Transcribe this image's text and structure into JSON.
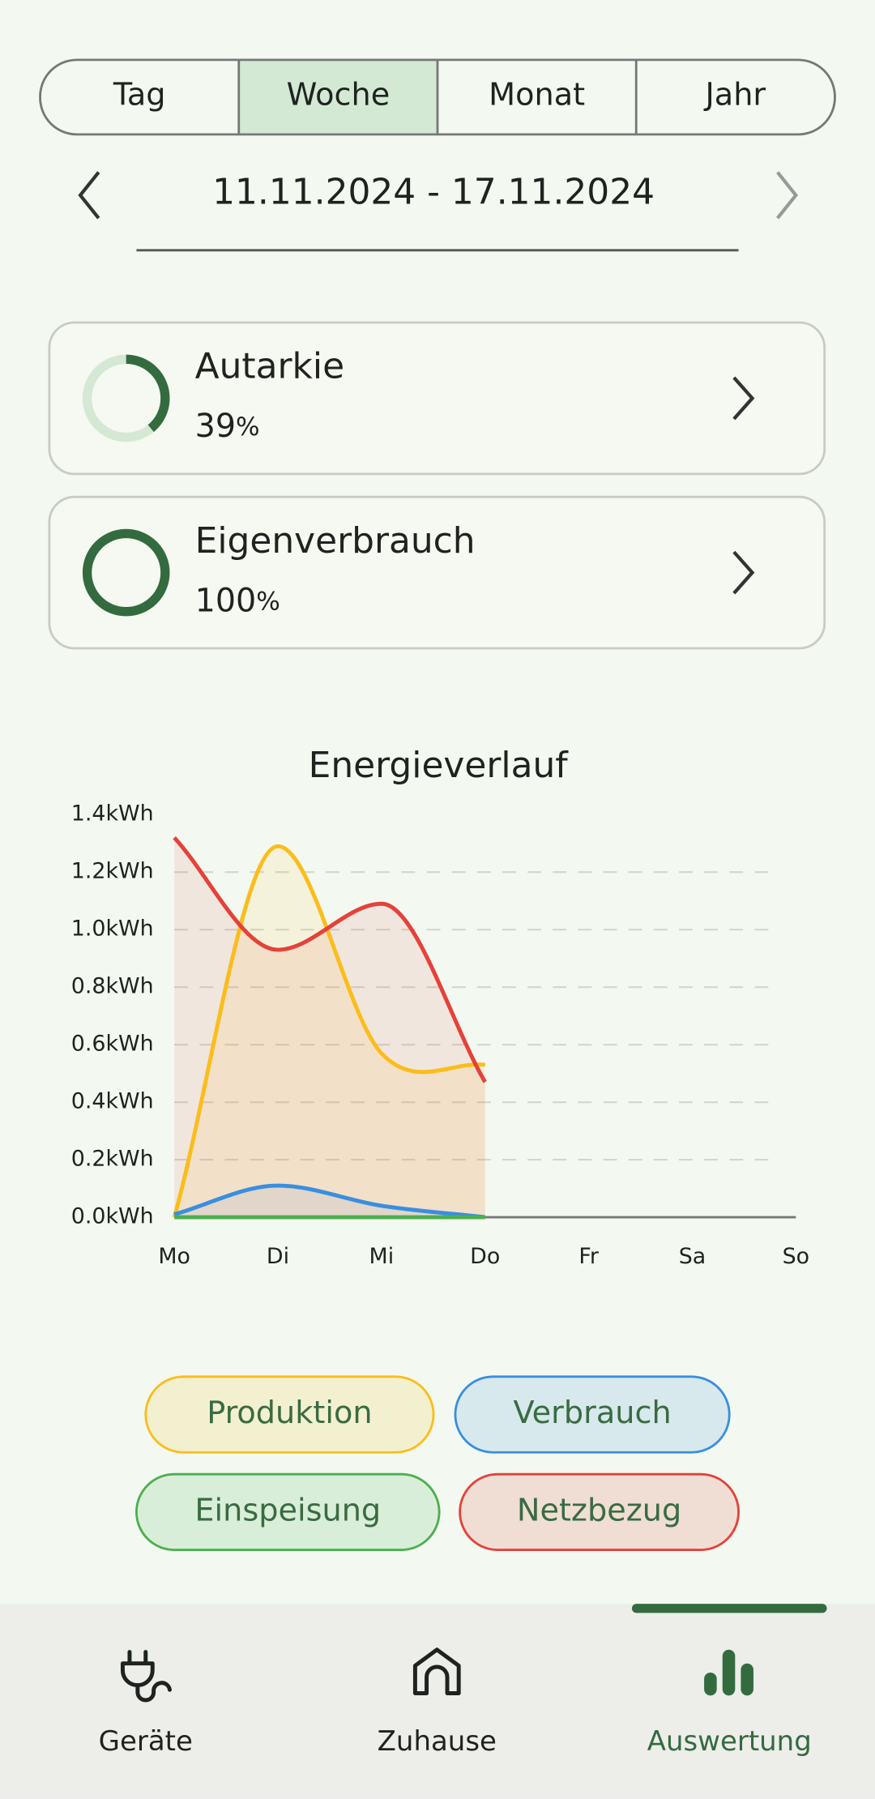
{
  "tabs": {
    "items": [
      "Tag",
      "Woche",
      "Monat",
      "Jahr"
    ],
    "active": 1
  },
  "date_range": "11.11.2024 - 17.11.2024",
  "cards": [
    {
      "title": "Autarkie",
      "value": 39,
      "unit": "%"
    },
    {
      "title": "Eigenverbrauch",
      "value": 100,
      "unit": "%"
    }
  ],
  "chart_data": {
    "type": "line",
    "title": "Energieverlauf",
    "categories": [
      "Mo",
      "Di",
      "Mi",
      "Do",
      "Fr",
      "Sa",
      "So"
    ],
    "series": [
      {
        "name": "Produktion",
        "color": "#fbbd1b",
        "values": [
          0,
          1.29,
          0.57,
          0.53,
          null,
          null,
          null
        ]
      },
      {
        "name": "Verbrauch",
        "color": "#3a8ee0",
        "values": [
          0.01,
          0.11,
          0.04,
          0,
          null,
          null,
          null
        ]
      },
      {
        "name": "Einspeisung",
        "color": "#4caf50",
        "values": [
          0,
          0,
          0,
          0,
          null,
          null,
          null
        ]
      },
      {
        "name": "Netzbezug",
        "color": "#e5413a",
        "values": [
          1.32,
          0.93,
          1.09,
          0.47,
          null,
          null,
          null
        ]
      }
    ],
    "ylim": [
      0,
      1.4
    ],
    "yticks": [
      {
        "value": 0,
        "label": "0.0kWh"
      },
      {
        "value": 0.2,
        "label": "0.2kWh"
      },
      {
        "value": 0.4,
        "label": "0.4kWh"
      },
      {
        "value": 0.6,
        "label": "0.6kWh"
      },
      {
        "value": 0.8,
        "label": "0.8kWh"
      },
      {
        "value": 1.0,
        "label": "1.0kWh"
      },
      {
        "value": 1.2,
        "label": "1.2kWh"
      },
      {
        "value": 1.4,
        "label": "1.4kWh"
      }
    ],
    "grid": true
  },
  "nav": {
    "items": [
      "Geräte",
      "Zuhause",
      "Auswertung"
    ],
    "active": 2
  }
}
